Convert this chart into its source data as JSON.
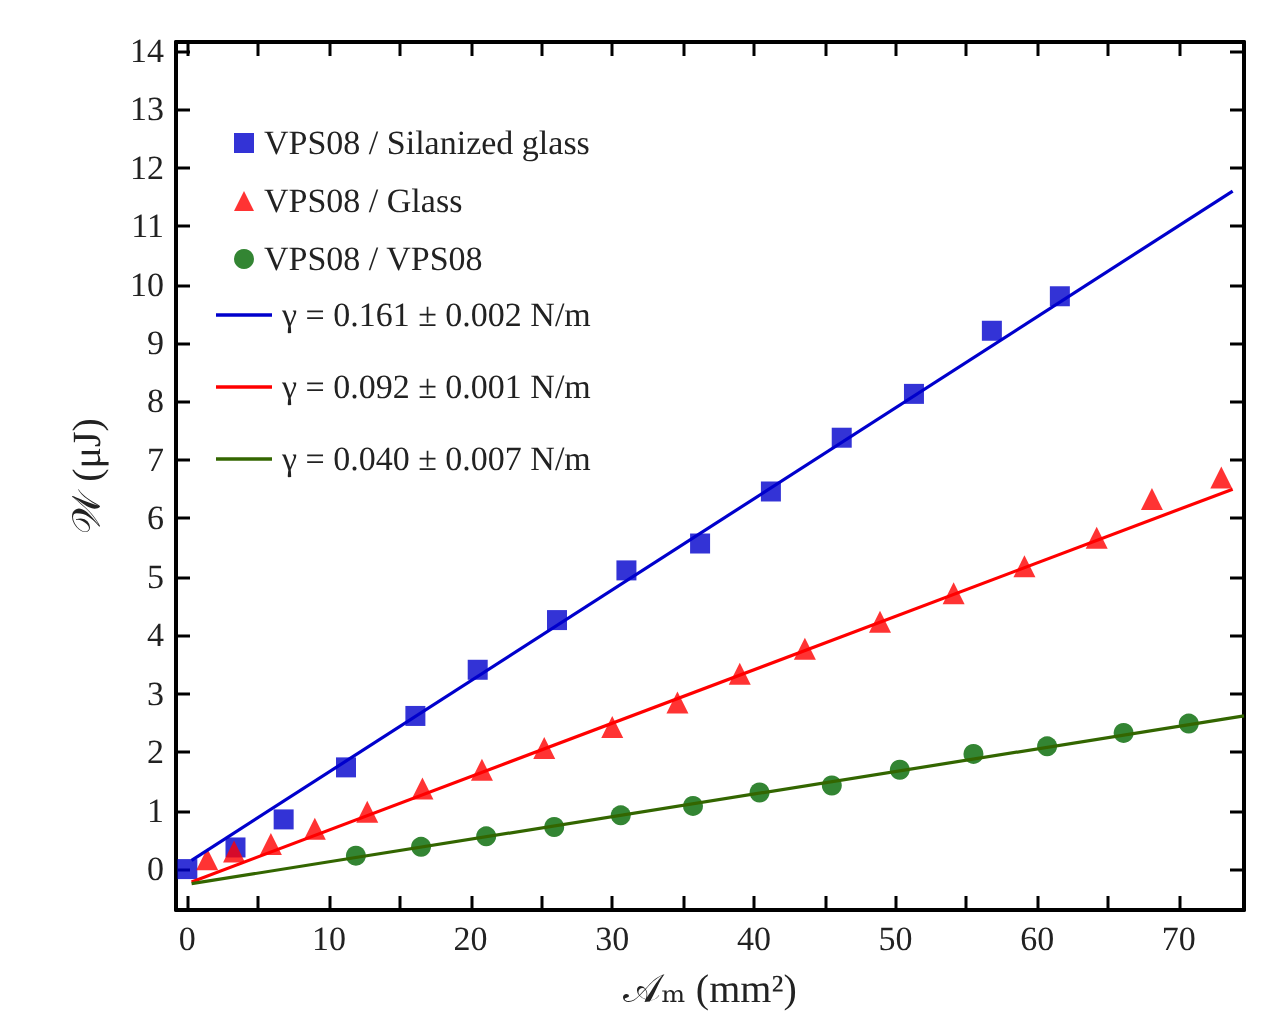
{
  "chart_data": {
    "type": "scatter",
    "xlabel": "𝒜ₘ (mm²)",
    "ylabel": "𝒲 (μJ)",
    "xlim": [
      -0.8,
      74.6
    ],
    "ylim": [
      -0.7,
      14.15
    ],
    "xticks": [
      0,
      {
        "value": 5,
        "label": null
      },
      10,
      {
        "value": 15,
        "label": null
      },
      20,
      {
        "value": 25,
        "label": null
      },
      30,
      {
        "value": 35,
        "label": null
      },
      40,
      {
        "value": 45,
        "label": null
      },
      50,
      {
        "value": 55,
        "label": null
      },
      60,
      {
        "value": 65,
        "label": null
      },
      70
    ],
    "yticks": [
      0,
      1,
      2,
      3,
      4,
      5,
      6,
      7,
      8,
      9,
      10,
      11,
      12,
      13,
      14
    ],
    "grid": false,
    "legend": "top left",
    "series": [
      {
        "name": "VPS08 / Silanized glass",
        "color": "#0000cc",
        "marker": "square",
        "x": [
          0,
          3.4,
          6.8,
          11.2,
          16.1,
          20.5,
          26.1,
          31.0,
          36.2,
          41.2,
          46.2,
          51.3,
          56.8,
          61.6
        ],
        "values": [
          0,
          0.37,
          0.85,
          1.74,
          2.62,
          3.41,
          4.26,
          5.11,
          5.57,
          6.46,
          7.38,
          8.13,
          9.21,
          9.8
        ]
      },
      {
        "name": "VPS08 / Glass",
        "color": "#ff0000",
        "marker": "triangle",
        "x": [
          1.4,
          3.3,
          5.9,
          9.0,
          12.7,
          16.6,
          20.8,
          25.2,
          30.0,
          34.6,
          39.0,
          43.6,
          48.9,
          54.1,
          59.1,
          64.2,
          68.1,
          73.0
        ],
        "values": [
          0.17,
          0.3,
          0.43,
          0.69,
          0.98,
          1.38,
          1.7,
          2.07,
          2.43,
          2.85,
          3.34,
          3.77,
          4.23,
          4.72,
          5.18,
          5.67,
          6.33,
          6.7
        ]
      },
      {
        "name": "VPS08 / VPS08",
        "color": "#006600",
        "marker": "circle",
        "x": [
          11.9,
          16.5,
          21.1,
          25.9,
          30.6,
          35.7,
          40.4,
          45.5,
          50.3,
          55.5,
          60.7,
          66.1,
          70.7
        ],
        "values": [
          0.23,
          0.38,
          0.56,
          0.72,
          0.92,
          1.08,
          1.31,
          1.43,
          1.7,
          1.97,
          2.1,
          2.33,
          2.49
        ]
      },
      {
        "name": "γ = 0.161 ± 0.002 N/m",
        "type": "line",
        "color": "#0000cc",
        "marker": "none",
        "x": [
          0.3,
          73.8
        ],
        "values": [
          0.15,
          11.6
        ]
      },
      {
        "name": "γ = 0.092 ± 0.001 N/m",
        "type": "line",
        "color": "#ff0000",
        "marker": "none",
        "x": [
          0.3,
          73.8
        ],
        "values": [
          -0.22,
          6.5
        ]
      },
      {
        "name": "γ = 0.040 ± 0.007 N/m",
        "type": "line",
        "color": "#336600",
        "marker": "none",
        "x": [
          0.3,
          74.6
        ],
        "values": [
          -0.25,
          2.62
        ]
      }
    ]
  }
}
